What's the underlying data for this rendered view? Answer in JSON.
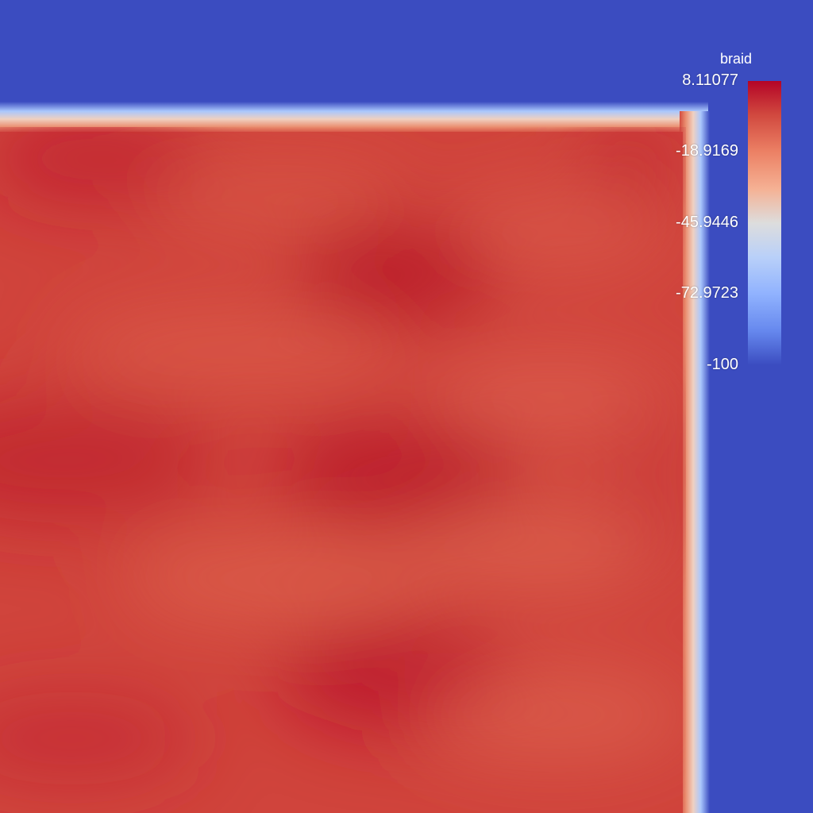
{
  "chart_data": {
    "type": "heatmap",
    "title": "",
    "xlabel": "",
    "ylabel": "",
    "legend": {
      "title": "braid",
      "placement": "top-right",
      "range": [
        -100,
        8.11077
      ],
      "tick_labels": [
        "8.11077",
        "-18.9169",
        "-45.9446",
        "-72.9723",
        "-100"
      ],
      "tick_values": [
        8.11077,
        -18.9169,
        -45.9446,
        -72.9723,
        -100
      ],
      "colormap": "Cool to Warm",
      "colors": {
        "low": "#3b4cc0",
        "mid": "#dddddd",
        "high": "#b40426"
      }
    },
    "field": {
      "background_value": -100,
      "interior_value_range": [
        -8,
        8.11077
      ],
      "description_values": "interior near 0 to 8 (warm red), boundary region at -100 (blue)"
    }
  }
}
